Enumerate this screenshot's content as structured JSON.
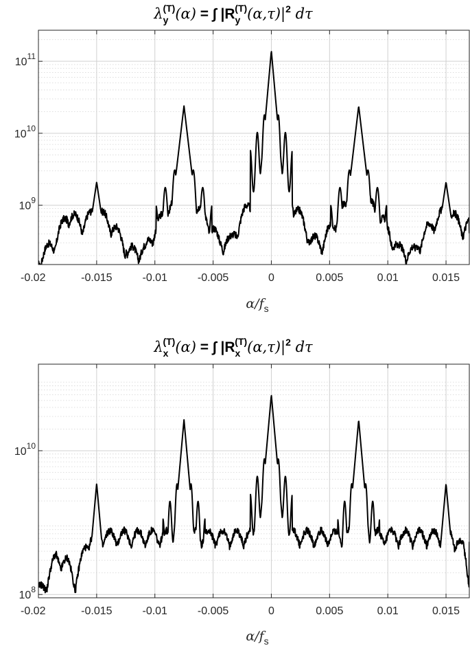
{
  "chart_data": [
    {
      "type": "line",
      "title": "λy(T)(α) = ∫ |Ry(T)(α,τ)|2 dτ",
      "title_parts": {
        "lambda": "λ",
        "sub": "y",
        "sup": "(T)",
        "arg": "(α)",
        "eq": " = ∫ |R",
        "rsub": "y",
        "rsup": "(T)",
        "rarg": "(α,τ)|",
        "pow": "2",
        "tail": " dτ"
      },
      "xlabel": {
        "main": "α/f",
        "sub": "s"
      },
      "xlim": [
        -0.02,
        0.017
      ],
      "ylim": [
        150000000,
        270000000000
      ],
      "yscale": "log",
      "xticks": [
        -0.02,
        -0.015,
        -0.01,
        -0.005,
        0,
        0.005,
        0.01,
        0.015
      ],
      "xtick_labels": [
        "-0.02",
        "-0.015",
        "-0.01",
        "-0.005",
        "0",
        "0.005",
        "0.01",
        "0.015"
      ],
      "ytick_labels": [
        {
          "base": "10",
          "exp": "9",
          "value": 1000000000
        },
        {
          "base": "10",
          "exp": "10",
          "value": 10000000000
        },
        {
          "base": "10",
          "exp": "11",
          "value": 100000000000
        }
      ],
      "grid": true,
      "line_color": "#000000",
      "peaks": [
        {
          "alpha": 0,
          "peak": 140000000000,
          "width": 0.0003
        },
        {
          "alpha": -0.0075,
          "peak": 24000000000,
          "width": 0.0004
        },
        {
          "alpha": 0.0075,
          "peak": 24000000000,
          "width": 0.0004
        },
        {
          "alpha": -0.015,
          "peak": 2100000000,
          "width": 0.0005
        },
        {
          "alpha": 0.015,
          "peak": 2100000000,
          "width": 0.0005
        }
      ],
      "lobes": [
        {
          "center": 0,
          "level": 2000000000,
          "halfwidth": 0.0037
        },
        {
          "center": -0.0075,
          "level": 1200000000,
          "halfwidth": 0.0033
        },
        {
          "center": 0.0075,
          "level": 1200000000,
          "halfwidth": 0.0033
        },
        {
          "center": -0.015,
          "level": 700000000,
          "halfwidth": 0.0026
        },
        {
          "center": 0.015,
          "level": 700000000,
          "halfwidth": 0.0026
        }
      ],
      "floor": 230000000,
      "floor_points": [
        {
          "alpha": -0.02,
          "value": 160000000
        },
        {
          "alpha": -0.0185,
          "value": 300000000
        },
        {
          "alpha": -0.0175,
          "value": 700000000
        },
        {
          "alpha": -0.013,
          "value": 200000000
        },
        {
          "alpha": -0.0038,
          "value": 290000000
        },
        {
          "alpha": 0.0038,
          "value": 290000000
        },
        {
          "alpha": 0.013,
          "value": 200000000
        },
        {
          "alpha": 0.017,
          "value": 500000000
        }
      ]
    },
    {
      "type": "line",
      "title": "λx(T)(α) = ∫ |Rx(T)(α,τ)|2 dτ",
      "title_parts": {
        "lambda": "λ",
        "sub": "x",
        "sup": "(T)",
        "arg": "(α)",
        "eq": " = ∫ |R",
        "rsub": "x",
        "rsup": "(T)",
        "rarg": "(α,τ)|",
        "pow": "2",
        "tail": " dτ"
      },
      "xlabel": {
        "main": "α/f",
        "sub": "s"
      },
      "xlim": [
        -0.02,
        0.017
      ],
      "ylim": [
        90000000,
        160000000000
      ],
      "yscale": "log",
      "xticks": [
        -0.02,
        -0.015,
        -0.01,
        -0.005,
        0,
        0.005,
        0.01,
        0.015
      ],
      "xtick_labels": [
        "-0.02",
        "-0.015",
        "-0.01",
        "-0.005",
        "0",
        "0.005",
        "0.01",
        "0.015"
      ],
      "ytick_labels": [
        {
          "base": "10",
          "exp": "8",
          "value": 100000000
        },
        {
          "base": "10",
          "exp": "10",
          "value": 10000000000
        }
      ],
      "grid": true,
      "line_color": "#000000",
      "peaks": [
        {
          "alpha": 0,
          "peak": 60000000000,
          "width": 0.0003
        },
        {
          "alpha": -0.0075,
          "peak": 27000000000,
          "width": 0.0003
        },
        {
          "alpha": 0.0075,
          "peak": 27000000000,
          "width": 0.0003
        },
        {
          "alpha": -0.015,
          "peak": 3500000000,
          "width": 0.0003
        },
        {
          "alpha": 0.015,
          "peak": 3500000000,
          "width": 0.0003
        }
      ],
      "lobes": [
        {
          "center": 0,
          "level": 1100000000,
          "halfwidth": 0.0016
        }
      ],
      "floor": 600000000,
      "floor_points": [
        {
          "alpha": -0.02,
          "value": 100000000
        },
        {
          "alpha": -0.0195,
          "value": 120000000
        },
        {
          "alpha": -0.0185,
          "value": 300000000
        },
        {
          "alpha": -0.0175,
          "value": 250000000
        },
        {
          "alpha": -0.0168,
          "value": 140000000
        },
        {
          "alpha": -0.016,
          "value": 400000000
        },
        {
          "alpha": -0.0155,
          "value": 600000000
        },
        {
          "alpha": 0.0155,
          "value": 600000000
        },
        {
          "alpha": 0.0165,
          "value": 400000000
        },
        {
          "alpha": 0.017,
          "value": 160000000
        }
      ]
    }
  ]
}
